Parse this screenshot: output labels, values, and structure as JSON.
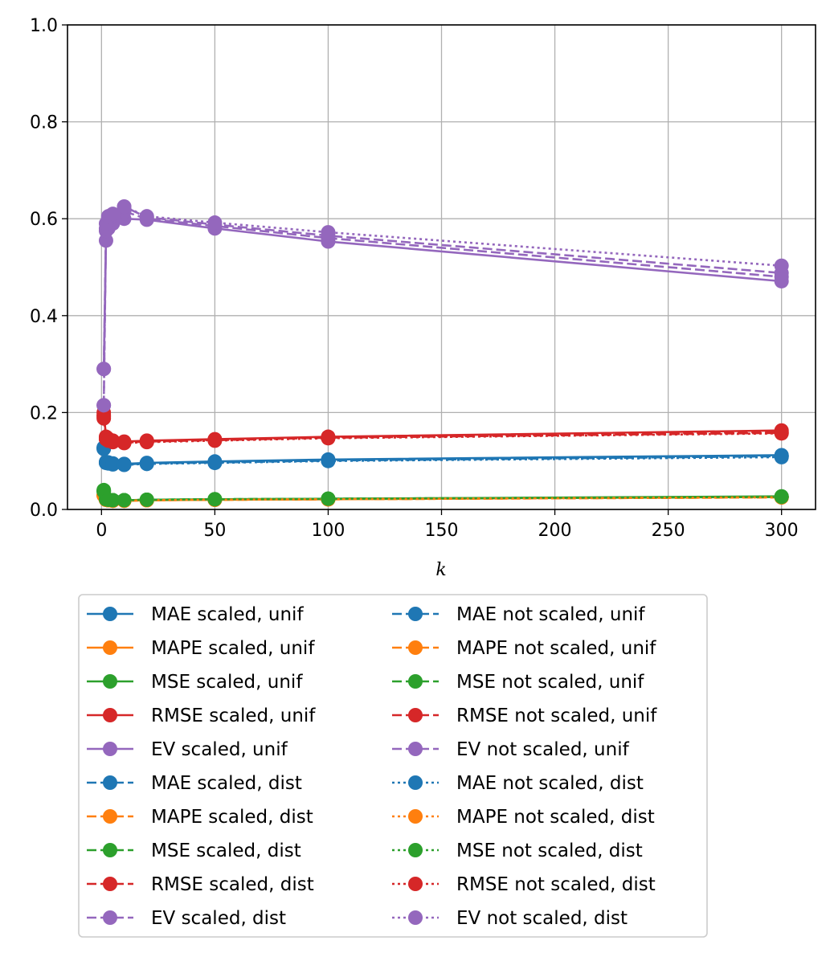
{
  "chart_data": {
    "type": "line",
    "title": "",
    "xlabel": "k",
    "ylabel": "",
    "xlim": [
      -15,
      315
    ],
    "ylim": [
      0,
      1.0
    ],
    "xticks": [
      0,
      50,
      100,
      150,
      200,
      250,
      300
    ],
    "yticks": [
      0.0,
      0.2,
      0.4,
      0.6,
      0.8,
      1.0
    ],
    "ytick_labels": [
      "0.0",
      "0.2",
      "0.4",
      "0.6",
      "0.8",
      "1.0"
    ],
    "grid": true,
    "legend_placement": "below",
    "x": [
      1,
      2,
      3,
      5,
      10,
      20,
      50,
      100,
      300
    ],
    "series": [
      {
        "name": "MAE scaled, unif",
        "color": "#1f77b4",
        "style": "solid",
        "values": [
          0.128,
          0.098,
          0.097,
          0.095,
          0.094,
          0.096,
          0.099,
          0.103,
          0.112
        ]
      },
      {
        "name": "MAPE scaled, unif",
        "color": "#ff7f0e",
        "style": "solid",
        "values": [
          0.03,
          0.02,
          0.019,
          0.018,
          0.018,
          0.019,
          0.02,
          0.021,
          0.026
        ]
      },
      {
        "name": "MSE scaled, unif",
        "color": "#2ca02c",
        "style": "solid",
        "values": [
          0.04,
          0.022,
          0.02,
          0.019,
          0.019,
          0.02,
          0.021,
          0.022,
          0.027
        ]
      },
      {
        "name": "RMSE scaled, unif",
        "color": "#d62728",
        "style": "solid",
        "values": [
          0.2,
          0.15,
          0.146,
          0.142,
          0.14,
          0.142,
          0.145,
          0.15,
          0.163
        ]
      },
      {
        "name": "EV scaled, unif",
        "color": "#9467bd",
        "style": "solid",
        "values": [
          0.29,
          0.555,
          0.58,
          0.59,
          0.6,
          0.598,
          0.58,
          0.553,
          0.471
        ]
      },
      {
        "name": "MAE scaled, dist",
        "color": "#1f77b4",
        "style": "dashed",
        "values": [
          0.127,
          0.097,
          0.096,
          0.094,
          0.093,
          0.095,
          0.097,
          0.101,
          0.11
        ]
      },
      {
        "name": "MAPE scaled, dist",
        "color": "#ff7f0e",
        "style": "dashed",
        "values": [
          0.029,
          0.02,
          0.019,
          0.018,
          0.018,
          0.019,
          0.02,
          0.021,
          0.025
        ]
      },
      {
        "name": "MSE scaled, dist",
        "color": "#2ca02c",
        "style": "dashed",
        "values": [
          0.038,
          0.021,
          0.02,
          0.019,
          0.019,
          0.02,
          0.021,
          0.022,
          0.026
        ]
      },
      {
        "name": "RMSE scaled, dist",
        "color": "#d62728",
        "style": "dashed",
        "values": [
          0.195,
          0.148,
          0.144,
          0.141,
          0.139,
          0.141,
          0.144,
          0.149,
          0.16
        ]
      },
      {
        "name": "EV scaled, dist",
        "color": "#9467bd",
        "style": "dashed",
        "values": [
          0.215,
          0.575,
          0.6,
          0.605,
          0.615,
          0.6,
          0.585,
          0.56,
          0.48
        ]
      },
      {
        "name": "MAE not scaled, unif",
        "color": "#1f77b4",
        "style": "dashed",
        "values": [
          0.126,
          0.097,
          0.096,
          0.094,
          0.093,
          0.095,
          0.097,
          0.101,
          0.11
        ]
      },
      {
        "name": "MAPE not scaled, unif",
        "color": "#ff7f0e",
        "style": "dashed",
        "values": [
          0.029,
          0.02,
          0.019,
          0.018,
          0.018,
          0.019,
          0.02,
          0.021,
          0.025
        ]
      },
      {
        "name": "MSE not scaled, unif",
        "color": "#2ca02c",
        "style": "dashed",
        "values": [
          0.038,
          0.021,
          0.02,
          0.019,
          0.019,
          0.02,
          0.021,
          0.022,
          0.026
        ]
      },
      {
        "name": "RMSE not scaled, unif",
        "color": "#d62728",
        "style": "dashed",
        "values": [
          0.192,
          0.146,
          0.143,
          0.14,
          0.138,
          0.14,
          0.143,
          0.148,
          0.158
        ]
      },
      {
        "name": "EV not scaled, unif",
        "color": "#9467bd",
        "style": "dashed",
        "values": [
          0.29,
          0.58,
          0.6,
          0.607,
          0.625,
          0.603,
          0.588,
          0.565,
          0.488
        ]
      },
      {
        "name": "MAE not scaled, dist",
        "color": "#1f77b4",
        "style": "dotted",
        "values": [
          0.125,
          0.096,
          0.095,
          0.093,
          0.092,
          0.094,
          0.096,
          0.1,
          0.108
        ]
      },
      {
        "name": "MAPE not scaled, dist",
        "color": "#ff7f0e",
        "style": "dotted",
        "values": [
          0.029,
          0.02,
          0.019,
          0.018,
          0.018,
          0.019,
          0.02,
          0.021,
          0.025
        ]
      },
      {
        "name": "MSE not scaled, dist",
        "color": "#2ca02c",
        "style": "dotted",
        "values": [
          0.037,
          0.021,
          0.02,
          0.019,
          0.019,
          0.02,
          0.021,
          0.022,
          0.026
        ]
      },
      {
        "name": "RMSE not scaled, dist",
        "color": "#d62728",
        "style": "dotted",
        "values": [
          0.188,
          0.145,
          0.142,
          0.139,
          0.137,
          0.139,
          0.142,
          0.147,
          0.157
        ]
      },
      {
        "name": "EV not scaled, dist",
        "color": "#9467bd",
        "style": "dotted",
        "values": [
          0.215,
          0.59,
          0.605,
          0.61,
          0.625,
          0.605,
          0.592,
          0.572,
          0.503
        ]
      }
    ]
  }
}
